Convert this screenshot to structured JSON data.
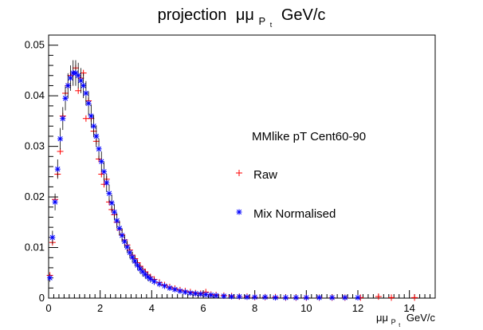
{
  "chart_data": {
    "type": "scatter",
    "title_main": "projection",
    "title_sym": "μμ",
    "title_sub": "P",
    "title_subsub": "t",
    "title_unit": "GeV/c",
    "xlabel_sym": "μμ",
    "xlabel_sub": "P",
    "xlabel_subsub": "t",
    "xlabel_unit": "GeV/c",
    "legend_header": "MMlike pT Cent60-90",
    "legend_position": "right",
    "grid": false,
    "xlim": [
      0,
      15
    ],
    "ylim": [
      0,
      0.052
    ],
    "x_ticks": [
      "0",
      "2",
      "4",
      "6",
      "8",
      "10",
      "12",
      "14"
    ],
    "y_ticks": [
      "0",
      "0.01",
      "0.02",
      "0.03",
      "0.04",
      "0.05"
    ],
    "series": [
      {
        "name": "Raw",
        "marker": "plus",
        "color": "#ff0000",
        "points": [
          [
            0.05,
            0.0045
          ],
          [
            0.15,
            0.011
          ],
          [
            0.25,
            0.0195
          ],
          [
            0.35,
            0.0245
          ],
          [
            0.45,
            0.029
          ],
          [
            0.55,
            0.036
          ],
          [
            0.65,
            0.0405
          ],
          [
            0.75,
            0.042
          ],
          [
            0.85,
            0.044
          ],
          [
            0.95,
            0.0445
          ],
          [
            1.05,
            0.0455
          ],
          [
            1.15,
            0.041
          ],
          [
            1.25,
            0.0435
          ],
          [
            1.35,
            0.0445
          ],
          [
            1.45,
            0.0355
          ],
          [
            1.55,
            0.039
          ],
          [
            1.65,
            0.0355
          ],
          [
            1.75,
            0.033
          ],
          [
            1.85,
            0.031
          ],
          [
            1.95,
            0.0275
          ],
          [
            2.05,
            0.0245
          ],
          [
            2.15,
            0.0225
          ],
          [
            2.25,
            0.0235
          ],
          [
            2.35,
            0.019
          ],
          [
            2.45,
            0.0175
          ],
          [
            2.55,
            0.0165
          ],
          [
            2.65,
            0.015
          ],
          [
            2.75,
            0.0135
          ],
          [
            2.85,
            0.0125
          ],
          [
            2.95,
            0.0115
          ],
          [
            3.05,
            0.0105
          ],
          [
            3.15,
            0.0095
          ],
          [
            3.25,
            0.0085
          ],
          [
            3.35,
            0.0078
          ],
          [
            3.45,
            0.007
          ],
          [
            3.55,
            0.0063
          ],
          [
            3.65,
            0.0057
          ],
          [
            3.75,
            0.0052
          ],
          [
            3.85,
            0.0046
          ],
          [
            3.95,
            0.0042
          ],
          [
            4.1,
            0.0037
          ],
          [
            4.3,
            0.0031
          ],
          [
            4.5,
            0.0026
          ],
          [
            4.7,
            0.0022
          ],
          [
            4.9,
            0.0019
          ],
          [
            5.1,
            0.0016
          ],
          [
            5.3,
            0.0014
          ],
          [
            5.5,
            0.0012
          ],
          [
            5.7,
            0.001
          ],
          [
            5.9,
            0.0009
          ],
          [
            6.1,
            0.0012
          ],
          [
            6.3,
            0.0007
          ],
          [
            6.5,
            0.0006
          ],
          [
            6.8,
            0.0005
          ],
          [
            7.1,
            0.0004
          ],
          [
            7.4,
            0.0003
          ],
          [
            7.7,
            0.0003
          ],
          [
            8.0,
            0.0002
          ],
          [
            8.4,
            0.0002
          ],
          [
            8.8,
            0.0002
          ],
          [
            9.2,
            0.0001
          ],
          [
            9.6,
            0.0001
          ],
          [
            10.0,
            0.0001
          ],
          [
            10.5,
            0.0001
          ],
          [
            11.0,
            0.0001
          ],
          [
            11.5,
            0.0001
          ],
          [
            12.1,
            0.0001
          ],
          [
            12.8,
            0.0003
          ],
          [
            13.3,
            0.0001
          ],
          [
            14.2,
            0.0001
          ]
        ]
      },
      {
        "name": "Mix Normalised",
        "marker": "star",
        "color": "#0000ff",
        "points": [
          [
            0.05,
            0.004
          ],
          [
            0.15,
            0.012
          ],
          [
            0.25,
            0.019
          ],
          [
            0.35,
            0.0255
          ],
          [
            0.45,
            0.0315
          ],
          [
            0.55,
            0.0355
          ],
          [
            0.65,
            0.0395
          ],
          [
            0.75,
            0.042
          ],
          [
            0.85,
            0.0435
          ],
          [
            0.95,
            0.0445
          ],
          [
            1.05,
            0.0445
          ],
          [
            1.15,
            0.044
          ],
          [
            1.25,
            0.043
          ],
          [
            1.35,
            0.042
          ],
          [
            1.45,
            0.0405
          ],
          [
            1.55,
            0.0385
          ],
          [
            1.65,
            0.036
          ],
          [
            1.75,
            0.034
          ],
          [
            1.85,
            0.032
          ],
          [
            1.95,
            0.0295
          ],
          [
            2.05,
            0.027
          ],
          [
            2.15,
            0.025
          ],
          [
            2.25,
            0.0228
          ],
          [
            2.35,
            0.0207
          ],
          [
            2.45,
            0.0188
          ],
          [
            2.55,
            0.017
          ],
          [
            2.65,
            0.0153
          ],
          [
            2.75,
            0.0138
          ],
          [
            2.85,
            0.0124
          ],
          [
            2.95,
            0.0112
          ],
          [
            3.05,
            0.0101
          ],
          [
            3.15,
            0.009
          ],
          [
            3.25,
            0.0081
          ],
          [
            3.35,
            0.0073
          ],
          [
            3.45,
            0.0065
          ],
          [
            3.55,
            0.0058
          ],
          [
            3.65,
            0.0052
          ],
          [
            3.75,
            0.0047
          ],
          [
            3.85,
            0.0042
          ],
          [
            3.95,
            0.0038
          ],
          [
            4.1,
            0.0033
          ],
          [
            4.3,
            0.0028
          ],
          [
            4.5,
            0.0024
          ],
          [
            4.7,
            0.002
          ],
          [
            4.9,
            0.0017
          ],
          [
            5.1,
            0.0014
          ],
          [
            5.3,
            0.0012
          ],
          [
            5.5,
            0.001
          ],
          [
            5.7,
            0.0009
          ],
          [
            5.9,
            0.0008
          ],
          [
            6.1,
            0.0007
          ],
          [
            6.3,
            0.0006
          ],
          [
            6.5,
            0.0005
          ],
          [
            6.8,
            0.0004
          ],
          [
            7.1,
            0.0003
          ],
          [
            7.4,
            0.0003
          ],
          [
            7.7,
            0.0002
          ],
          [
            8.0,
            0.0002
          ],
          [
            8.4,
            0.0002
          ],
          [
            8.8,
            0.0001
          ],
          [
            9.2,
            0.0001
          ],
          [
            9.6,
            0.0001
          ],
          [
            10.0,
            0.0001
          ],
          [
            10.5,
            0.0001
          ],
          [
            11.0,
            0.0001
          ],
          [
            11.5,
            0.0001
          ],
          [
            12.0,
            0.0001
          ]
        ]
      }
    ]
  }
}
